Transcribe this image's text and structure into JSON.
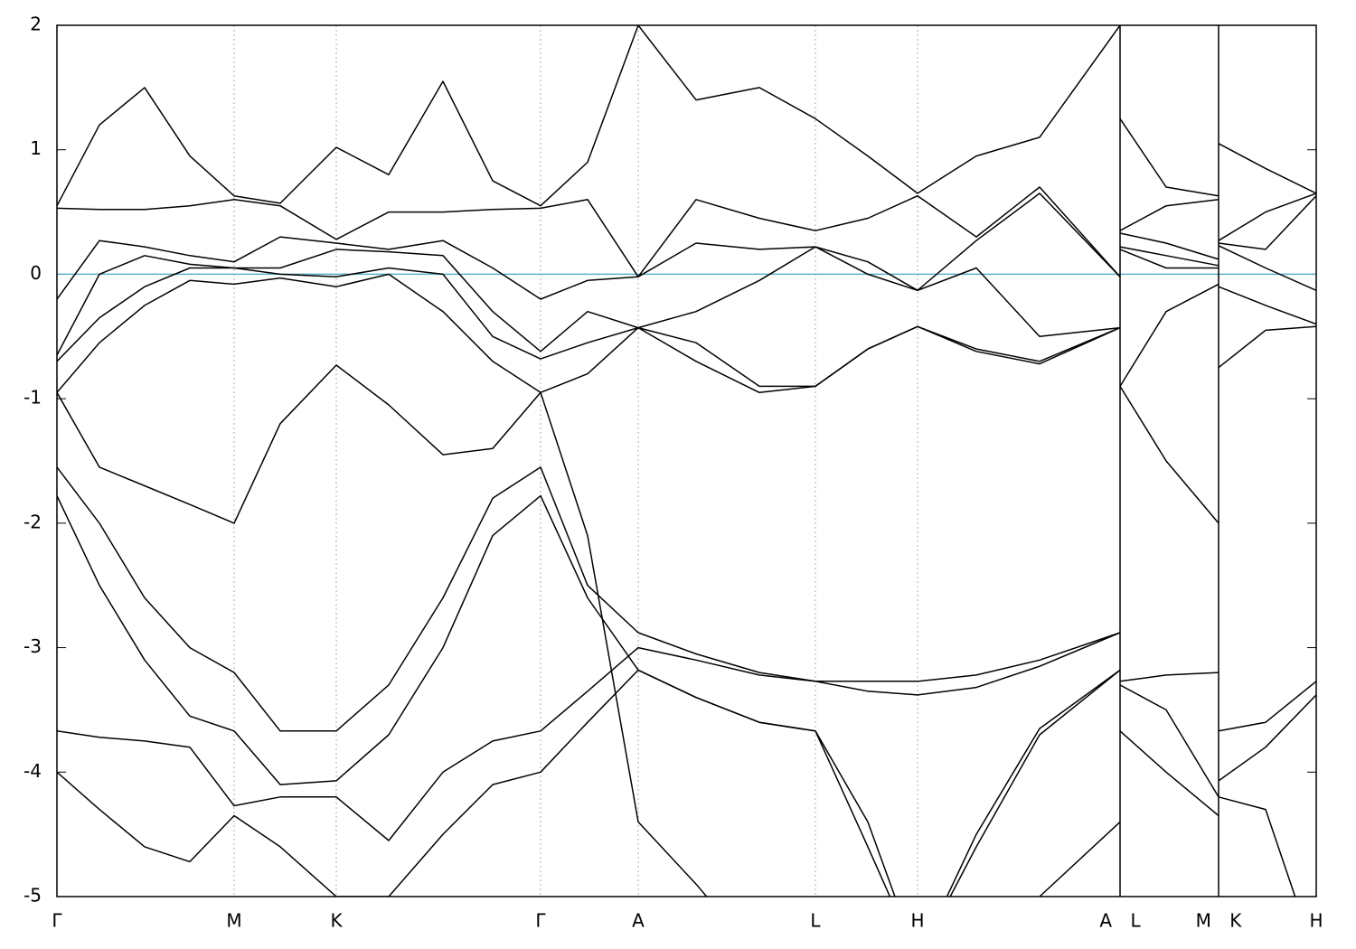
{
  "chart_data": {
    "type": "line",
    "color": "#000000",
    "grid": true,
    "reference_line": {
      "value": 0,
      "color": "#5fb0c8"
    },
    "xlim": [
      0,
      1393
    ],
    "ylim": [
      -5,
      2
    ],
    "yticks": [
      -5,
      -4,
      -3,
      -2,
      -1,
      0,
      1,
      2
    ],
    "xticks": [
      {
        "value": 0,
        "label": "Γ"
      },
      {
        "value": 196,
        "label": "M"
      },
      {
        "value": 309,
        "label": "K"
      },
      {
        "value": 535,
        "label": "Γ"
      },
      {
        "value": 643,
        "label": "A"
      },
      {
        "value": 839,
        "label": "L"
      },
      {
        "value": 952,
        "label": "H"
      },
      {
        "value": 1176,
        "label": "A L"
      },
      {
        "value": 1285,
        "label": "M K"
      },
      {
        "value": 1393,
        "label": "H"
      }
    ],
    "x": [
      0,
      47,
      97,
      147,
      196,
      247,
      309,
      367,
      427,
      482,
      535,
      587,
      643,
      707,
      777,
      839,
      897,
      952,
      1017,
      1087,
      1176,
      1176,
      1176,
      1227,
      1285,
      1285,
      1285,
      1337,
      1393
    ],
    "series": [
      {
        "values": [
          0.55,
          1.2,
          1.5,
          0.95,
          0.63,
          0.57,
          1.02,
          0.8,
          1.55,
          0.75,
          0.55,
          0.9,
          2.0,
          1.4,
          1.5,
          1.25,
          0.95,
          0.65,
          0.95,
          1.1,
          2.0,
          null,
          1.25,
          0.7,
          0.63,
          null,
          1.05,
          0.85,
          0.65
        ]
      },
      {
        "values": [
          0.53,
          0.52,
          0.52,
          0.55,
          0.6,
          0.55,
          0.28,
          0.5,
          0.5,
          0.52,
          0.53,
          0.6,
          -0.02,
          0.6,
          0.45,
          0.35,
          0.45,
          0.63,
          0.3,
          0.7,
          -0.02,
          null,
          0.35,
          0.55,
          0.6,
          null,
          0.27,
          0.5,
          0.65
        ]
      },
      {
        "values": [
          -0.2,
          0.27,
          0.22,
          0.15,
          0.1,
          0.3,
          0.25,
          0.2,
          0.27,
          0.05,
          -0.2,
          -0.05,
          -0.02,
          0.25,
          0.2,
          0.22,
          0.1,
          -0.13,
          0.27,
          0.65,
          -0.02,
          null,
          0.33,
          0.25,
          0.12,
          null,
          0.25,
          0.2,
          0.63
        ]
      },
      {
        "values": [
          -0.65,
          0.0,
          0.15,
          0.08,
          0.05,
          0.05,
          0.2,
          0.18,
          0.15,
          -0.3,
          -0.62,
          -0.3,
          -0.43,
          -0.3,
          -0.05,
          0.22,
          0.0,
          -0.13,
          0.05,
          -0.5,
          -0.43,
          null,
          0.22,
          0.15,
          0.07,
          null,
          0.23,
          0.05,
          -0.13
        ]
      },
      {
        "values": [
          -0.7,
          -0.35,
          -0.1,
          0.05,
          0.05,
          0.0,
          -0.02,
          0.05,
          0.0,
          -0.5,
          -0.68,
          -0.55,
          -0.43,
          -0.55,
          -0.9,
          -0.9,
          -0.6,
          -0.42,
          -0.6,
          -0.7,
          -0.43,
          null,
          0.2,
          0.05,
          0.05,
          null,
          -0.1,
          -0.25,
          -0.4
        ]
      },
      {
        "values": [
          -0.95,
          -0.55,
          -0.25,
          -0.05,
          -0.08,
          -0.03,
          -0.1,
          0.0,
          -0.3,
          -0.7,
          -0.95,
          -0.8,
          -0.43,
          -0.7,
          -0.95,
          -0.9,
          -0.6,
          -0.42,
          -0.62,
          -0.72,
          -0.43,
          null,
          -0.9,
          -0.3,
          -0.08,
          null,
          -0.75,
          -0.45,
          -0.42
        ]
      },
      {
        "values": [
          -0.95,
          -1.55,
          -1.7,
          -1.85,
          -2.0,
          -1.2,
          -0.73,
          -1.05,
          -1.45,
          -1.4,
          -0.95,
          -2.1,
          -4.4,
          -4.9,
          -5.5,
          -5.5,
          -5.5,
          -5.5,
          -5.5,
          -5.0,
          -4.4,
          null,
          -0.9,
          -1.5,
          -2.0,
          null,
          -4.2,
          -4.3,
          -5.5
        ]
      },
      {
        "values": [
          -1.55,
          -2.0,
          -2.6,
          -3.0,
          -3.2,
          -3.67,
          -3.67,
          -3.3,
          -2.6,
          -1.8,
          -1.55,
          -2.5,
          -2.88,
          -3.05,
          -3.2,
          -3.27,
          -3.27,
          -3.27,
          -3.22,
          -3.1,
          -2.88,
          null,
          -3.27,
          -3.22,
          -3.2,
          null,
          -3.67,
          -3.6,
          -3.27
        ]
      },
      {
        "values": [
          -1.78,
          -2.5,
          -3.1,
          -3.55,
          -3.67,
          -4.1,
          -4.07,
          -3.7,
          -3.0,
          -2.1,
          -1.78,
          -2.6,
          -3.18,
          -3.4,
          -3.6,
          -3.67,
          -4.6,
          -5.5,
          -4.6,
          -3.7,
          -3.18,
          null,
          -3.67,
          -4.0,
          -4.35,
          null,
          -4.07,
          -3.8,
          -3.38
        ]
      },
      {
        "values": [
          -3.67,
          -3.72,
          -3.75,
          -3.8,
          -4.27,
          -4.2,
          -4.2,
          -4.55,
          -4.0,
          -3.75,
          -3.67,
          -3.35,
          -3.0,
          -3.1,
          -3.22,
          -3.27,
          -3.35,
          -3.38,
          -3.32,
          -3.15,
          -2.88,
          null,
          -3.3,
          -3.5,
          -4.2,
          null,
          null,
          null,
          null
        ]
      },
      {
        "values": [
          -4.0,
          -4.3,
          -4.6,
          -4.72,
          -4.35,
          -4.6,
          -5.0,
          -5.0,
          -4.5,
          -4.1,
          -4.0,
          -3.6,
          -3.18,
          -3.4,
          -3.6,
          -3.67,
          -4.4,
          -5.5,
          -4.5,
          -3.65,
          -3.18,
          null,
          null,
          null,
          null,
          null,
          null,
          null,
          null
        ]
      }
    ]
  }
}
